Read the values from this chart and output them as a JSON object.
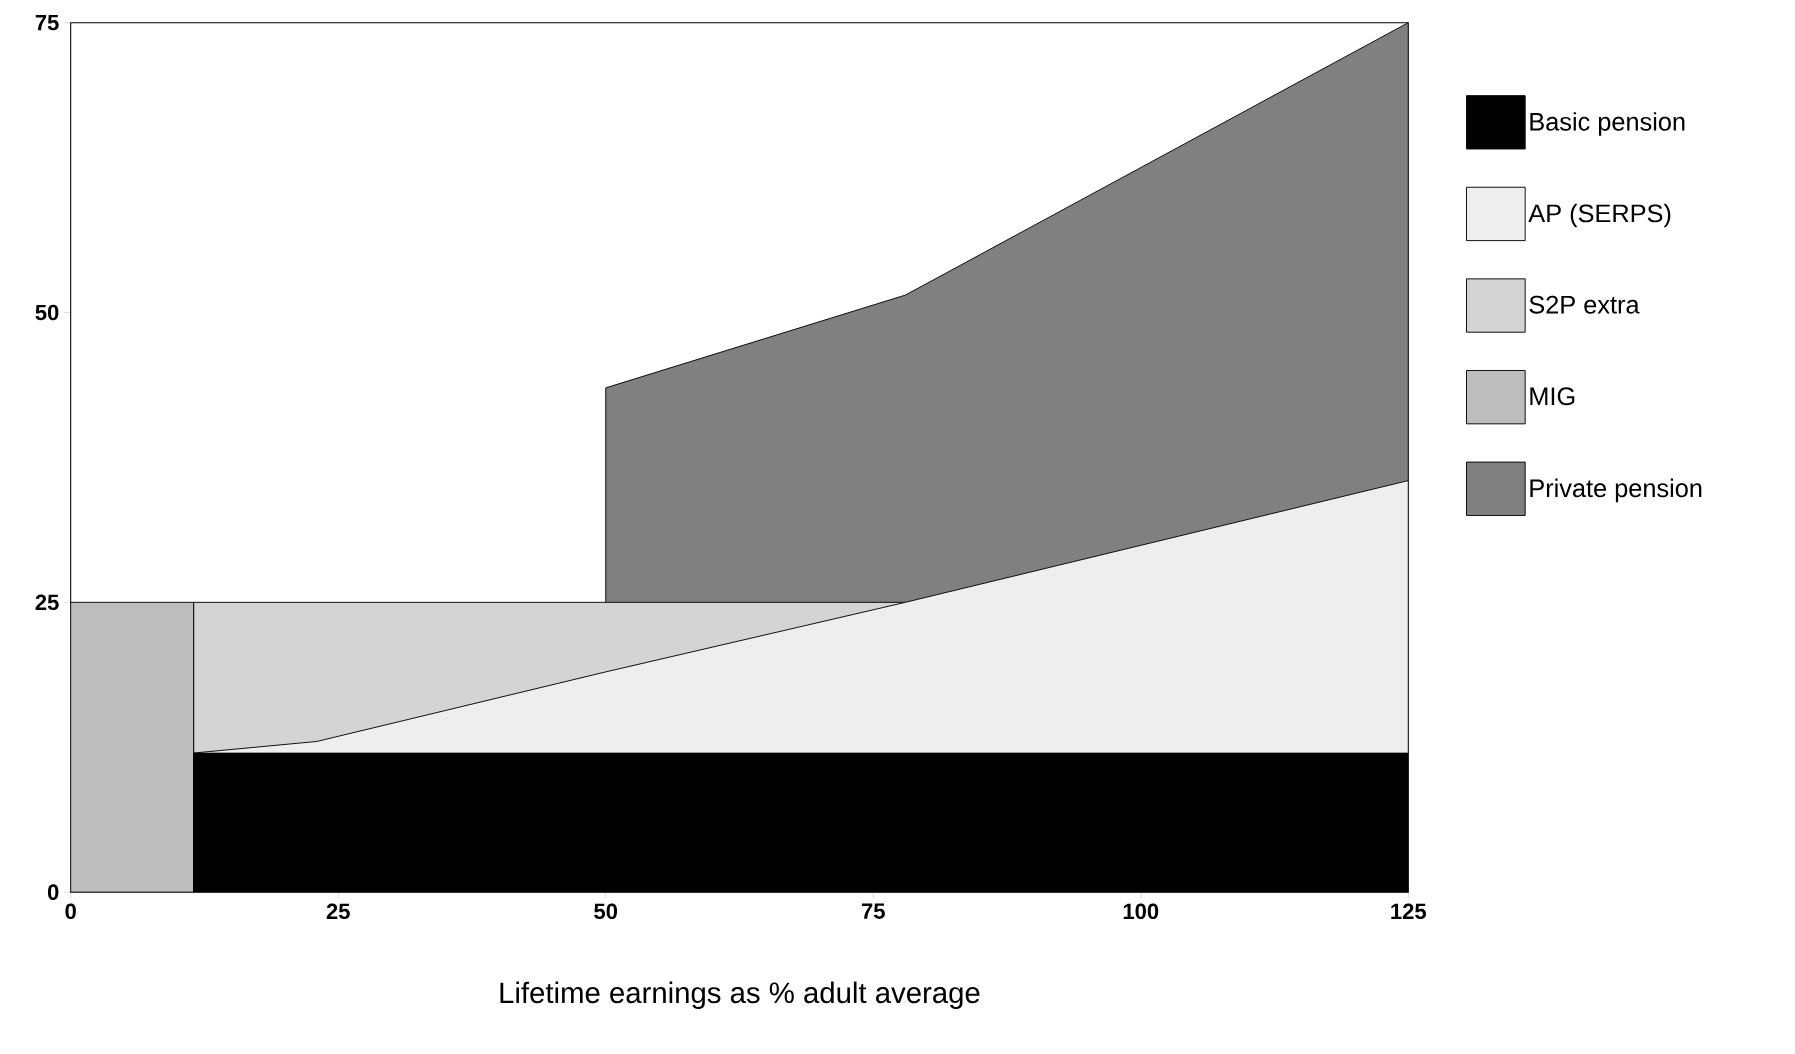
{
  "chart_data": {
    "type": "area",
    "xlabel": "Lifetime earnings as % adult average",
    "xlim": [
      0,
      125
    ],
    "ylim": [
      0,
      75
    ],
    "xticks": [
      0,
      25,
      50,
      75,
      100,
      125
    ],
    "yticks": [
      0,
      25,
      50,
      75
    ],
    "legend": "right",
    "series": [
      {
        "name": "Basic pension",
        "color": "#000000",
        "x": [
          11.5,
          125
        ],
        "values": [
          12,
          12
        ]
      },
      {
        "name": "AP (SERPS)",
        "color": "#eeeeee",
        "x": [
          11.5,
          23,
          50,
          78,
          125
        ],
        "values": [
          12,
          13,
          19,
          25,
          35.5
        ]
      },
      {
        "name": "S2P extra",
        "color": "#d4d4d4",
        "x": [
          11.5,
          78
        ],
        "values": [
          25,
          25
        ]
      },
      {
        "name": "MIG",
        "color": "#bdbdbd",
        "x": [
          0,
          11.5
        ],
        "values": [
          25,
          25
        ]
      },
      {
        "name": "Private pension",
        "color": "#808080",
        "x": [
          50,
          78,
          125
        ],
        "values": [
          43.5,
          51.5,
          75
        ]
      }
    ]
  }
}
